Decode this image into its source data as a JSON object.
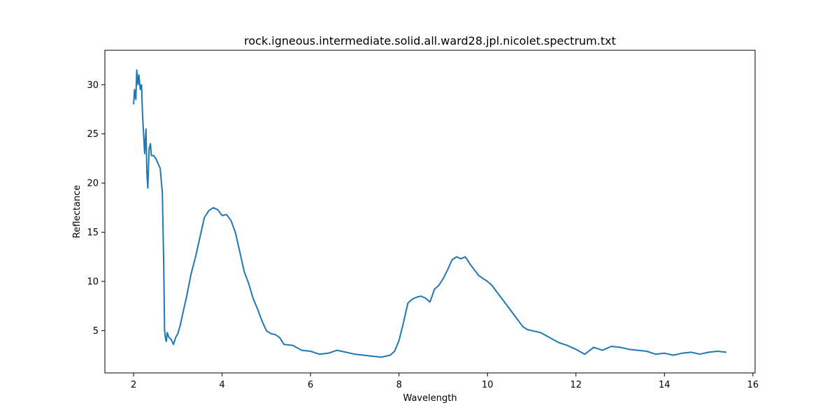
{
  "chart_data": {
    "type": "line",
    "title": "rock.igneous.intermediate.solid.all.ward28.jpl.nicolet.spectrum.txt",
    "xlabel": "Wavelength",
    "ylabel": "Reflectance",
    "xlim": [
      1.35,
      16.05
    ],
    "ylim": [
      0.7,
      33.5
    ],
    "xticks": [
      2,
      4,
      6,
      8,
      10,
      12,
      14,
      16
    ],
    "yticks": [
      5,
      10,
      15,
      20,
      25,
      30
    ],
    "grid": false,
    "legend": "none",
    "line_color": "#1f77b4",
    "series": [
      {
        "x": [
          2.0,
          2.02,
          2.05,
          2.07,
          2.1,
          2.12,
          2.15,
          2.18,
          2.2,
          2.22,
          2.25,
          2.28,
          2.3,
          2.32,
          2.35,
          2.38,
          2.4,
          2.45,
          2.5,
          2.55,
          2.6,
          2.65,
          2.68,
          2.7,
          2.72,
          2.74,
          2.76,
          2.8,
          2.85,
          2.9,
          2.95,
          3.0,
          3.05,
          3.1,
          3.2,
          3.3,
          3.4,
          3.5,
          3.6,
          3.7,
          3.8,
          3.9,
          4.0,
          4.1,
          4.2,
          4.3,
          4.4,
          4.5,
          4.6,
          4.7,
          4.8,
          4.9,
          5.0,
          5.1,
          5.2,
          5.3,
          5.4,
          5.6,
          5.8,
          6.0,
          6.2,
          6.4,
          6.6,
          6.8,
          7.0,
          7.2,
          7.4,
          7.6,
          7.8,
          7.9,
          8.0,
          8.1,
          8.2,
          8.3,
          8.4,
          8.5,
          8.6,
          8.7,
          8.8,
          8.9,
          9.0,
          9.1,
          9.2,
          9.3,
          9.4,
          9.5,
          9.6,
          9.7,
          9.8,
          9.9,
          10.0,
          10.1,
          10.2,
          10.3,
          10.4,
          10.5,
          10.6,
          10.7,
          10.8,
          10.9,
          11.0,
          11.2,
          11.4,
          11.6,
          11.8,
          12.0,
          12.2,
          12.4,
          12.6,
          12.8,
          13.0,
          13.2,
          13.4,
          13.6,
          13.8,
          14.0,
          14.2,
          14.4,
          14.6,
          14.8,
          15.0,
          15.2,
          15.4
        ],
        "y": [
          28.0,
          29.5,
          28.5,
          31.5,
          30.0,
          31.0,
          29.5,
          30.0,
          27.0,
          25.5,
          23.0,
          25.5,
          21.0,
          19.5,
          23.5,
          24.0,
          22.8,
          22.8,
          22.5,
          22.0,
          21.5,
          19.0,
          12.0,
          5.0,
          4.2,
          3.9,
          4.8,
          4.3,
          4.1,
          3.6,
          4.3,
          4.7,
          5.5,
          6.5,
          8.5,
          10.8,
          12.5,
          14.5,
          16.5,
          17.2,
          17.5,
          17.3,
          16.7,
          16.8,
          16.2,
          15.0,
          13.0,
          11.0,
          9.8,
          8.3,
          7.2,
          6.0,
          5.0,
          4.7,
          4.6,
          4.3,
          3.6,
          3.5,
          3.0,
          2.9,
          2.6,
          2.7,
          3.0,
          2.8,
          2.6,
          2.5,
          2.4,
          2.3,
          2.5,
          2.9,
          4.0,
          5.8,
          7.8,
          8.2,
          8.4,
          8.5,
          8.3,
          7.9,
          9.2,
          9.6,
          10.3,
          11.2,
          12.2,
          12.5,
          12.3,
          12.5,
          11.8,
          11.2,
          10.6,
          10.3,
          10.0,
          9.6,
          9.0,
          8.4,
          7.8,
          7.2,
          6.6,
          6.0,
          5.4,
          5.1,
          5.0,
          4.8,
          4.3,
          3.8,
          3.5,
          3.1,
          2.6,
          3.3,
          3.0,
          3.4,
          3.3,
          3.1,
          3.0,
          2.9,
          2.6,
          2.7,
          2.5,
          2.7,
          2.8,
          2.6,
          2.8,
          2.9,
          2.8
        ]
      }
    ]
  }
}
